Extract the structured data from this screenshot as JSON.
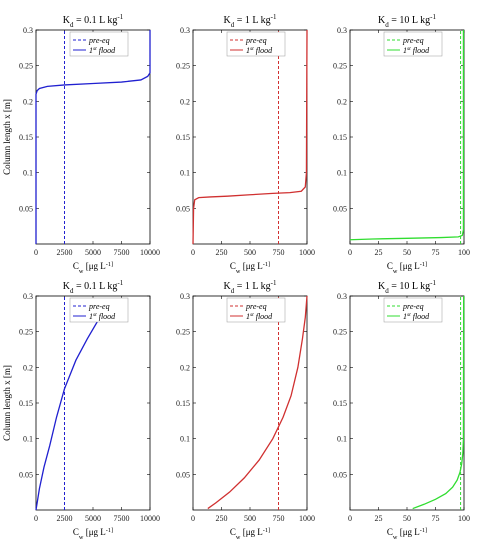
{
  "figure": {
    "ylabel": "Column length x [m]",
    "xlabel": "C_w [μg L^-1]",
    "legend_labels": [
      "pre-eq",
      "1st flood"
    ]
  },
  "chart_data": [
    {
      "type": "line",
      "title": "K_d = 0.1 L kg^-1",
      "color": "#2020d0",
      "xlim": [
        0,
        10000
      ],
      "ylim": [
        0,
        0.3
      ],
      "xticks": [
        0,
        2500,
        5000,
        7500,
        10000
      ],
      "xtick_labels": [
        "0",
        "2500",
        "5000",
        "7500",
        "10000"
      ],
      "yticks": [
        0.05,
        0.1,
        0.15,
        0.2,
        0.25,
        0.3
      ],
      "ytick_labels": [
        "0.05",
        "0.1",
        "0.15",
        "0.2",
        "0.25",
        "0.3"
      ],
      "legend": "top-right",
      "series": [
        {
          "name": "pre-eq",
          "style": "dashed",
          "x": [
            2500,
            2500
          ],
          "y": [
            0,
            0.3
          ]
        },
        {
          "name": "1st flood",
          "style": "solid",
          "x": [
            0,
            0,
            100,
            300,
            1000,
            2500,
            5000,
            7500,
            9200,
            9800,
            10000,
            10000
          ],
          "y": [
            0,
            0.21,
            0.215,
            0.218,
            0.221,
            0.223,
            0.225,
            0.227,
            0.23,
            0.235,
            0.24,
            0.3
          ]
        }
      ]
    },
    {
      "type": "line",
      "title": "K_d = 1 L kg^-1",
      "color": "#d03030",
      "xlim": [
        0,
        1000
      ],
      "ylim": [
        0,
        0.3
      ],
      "xticks": [
        0,
        250,
        500,
        750,
        1000
      ],
      "xtick_labels": [
        "0",
        "250",
        "500",
        "750",
        "1000"
      ],
      "yticks": [
        0.05,
        0.1,
        0.15,
        0.2,
        0.25,
        0.3
      ],
      "ytick_labels": [
        "0.05",
        "0.1",
        "0.15",
        "0.2",
        "0.25",
        "0.3"
      ],
      "legend": "top-right",
      "series": [
        {
          "name": "pre-eq",
          "style": "dashed",
          "x": [
            750,
            750
          ],
          "y": [
            0,
            0.3
          ]
        },
        {
          "name": "1st flood",
          "style": "solid",
          "x": [
            0,
            5,
            15,
            50,
            150,
            300,
            500,
            700,
            850,
            950,
            985,
            995,
            1000
          ],
          "y": [
            0,
            0.05,
            0.062,
            0.065,
            0.066,
            0.067,
            0.069,
            0.071,
            0.072,
            0.074,
            0.08,
            0.1,
            0.3
          ]
        }
      ]
    },
    {
      "type": "line",
      "title": "K_d = 10 L kg^-1",
      "color": "#30dd30",
      "xlim": [
        0,
        100
      ],
      "ylim": [
        0,
        0.3
      ],
      "xticks": [
        0,
        25,
        50,
        75,
        100
      ],
      "xtick_labels": [
        "0",
        "25",
        "50",
        "75",
        "100"
      ],
      "yticks": [
        0.05,
        0.1,
        0.15,
        0.2,
        0.25,
        0.3
      ],
      "ytick_labels": [
        "0.05",
        "0.1",
        "0.15",
        "0.2",
        "0.25",
        "0.3"
      ],
      "legend": "top-right",
      "series": [
        {
          "name": "pre-eq",
          "style": "dashed",
          "x": [
            97,
            97
          ],
          "y": [
            0,
            0.3
          ]
        },
        {
          "name": "1st flood",
          "style": "solid",
          "x": [
            0,
            20,
            50,
            80,
            95,
            98.5,
            99.5,
            99.5
          ],
          "y": [
            0.006,
            0.007,
            0.008,
            0.009,
            0.01,
            0.012,
            0.02,
            0.3
          ]
        }
      ]
    },
    {
      "type": "line",
      "title": "K_d = 0.1 L kg^-1",
      "color": "#2020d0",
      "xlim": [
        0,
        10000
      ],
      "ylim": [
        0,
        0.3
      ],
      "xticks": [
        0,
        2500,
        5000,
        7500,
        10000
      ],
      "xtick_labels": [
        "0",
        "2500",
        "5000",
        "7500",
        "10000"
      ],
      "yticks": [
        0.05,
        0.1,
        0.15,
        0.2,
        0.25,
        0.3
      ],
      "ytick_labels": [
        "0.05",
        "0.1",
        "0.15",
        "0.2",
        "0.25",
        "0.3"
      ],
      "legend": "top-right",
      "series": [
        {
          "name": "pre-eq",
          "style": "dashed",
          "x": [
            2500,
            2500
          ],
          "y": [
            0,
            0.3
          ]
        },
        {
          "name": "1st flood",
          "style": "solid",
          "x": [
            0,
            100,
            300,
            700,
            1200,
            1800,
            2500,
            3500,
            4500,
            5600,
            6600
          ],
          "y": [
            0,
            0.01,
            0.03,
            0.06,
            0.09,
            0.13,
            0.17,
            0.21,
            0.24,
            0.27,
            0.295
          ]
        }
      ]
    },
    {
      "type": "line",
      "title": "K_d = 1 L kg^-1",
      "color": "#d03030",
      "xlim": [
        0,
        1000
      ],
      "ylim": [
        0,
        0.3
      ],
      "xticks": [
        0,
        250,
        500,
        750,
        1000
      ],
      "xtick_labels": [
        "0",
        "250",
        "500",
        "750",
        "1000"
      ],
      "yticks": [
        0.05,
        0.1,
        0.15,
        0.2,
        0.25,
        0.3
      ],
      "ytick_labels": [
        "0.05",
        "0.1",
        "0.15",
        "0.2",
        "0.25",
        "0.3"
      ],
      "legend": "top-right",
      "series": [
        {
          "name": "pre-eq",
          "style": "dashed",
          "x": [
            750,
            750
          ],
          "y": [
            0,
            0.3
          ]
        },
        {
          "name": "1st flood",
          "style": "solid",
          "x": [
            130,
            200,
            320,
            450,
            580,
            700,
            790,
            860,
            920,
            960,
            985,
            1000
          ],
          "y": [
            0.002,
            0.01,
            0.025,
            0.045,
            0.07,
            0.1,
            0.13,
            0.16,
            0.2,
            0.24,
            0.27,
            0.3
          ]
        }
      ]
    },
    {
      "type": "line",
      "title": "K_d = 10 L kg^-1",
      "color": "#30dd30",
      "xlim": [
        0,
        100
      ],
      "ylim": [
        0,
        0.3
      ],
      "xticks": [
        0,
        25,
        50,
        75,
        100
      ],
      "xtick_labels": [
        "0",
        "25",
        "50",
        "75",
        "100"
      ],
      "yticks": [
        0.05,
        0.1,
        0.15,
        0.2,
        0.25,
        0.3
      ],
      "ytick_labels": [
        "0.05",
        "0.1",
        "0.15",
        "0.2",
        "0.25",
        "0.3"
      ],
      "legend": "top-right",
      "series": [
        {
          "name": "pre-eq",
          "style": "dashed",
          "x": [
            97,
            97
          ],
          "y": [
            0,
            0.3
          ]
        },
        {
          "name": "1st flood",
          "style": "solid",
          "x": [
            55,
            65,
            75,
            84,
            90,
            94,
            96.5,
            98,
            99,
            99.5,
            99.7
          ],
          "y": [
            0.002,
            0.008,
            0.015,
            0.023,
            0.032,
            0.042,
            0.053,
            0.065,
            0.08,
            0.1,
            0.3
          ]
        }
      ]
    }
  ]
}
